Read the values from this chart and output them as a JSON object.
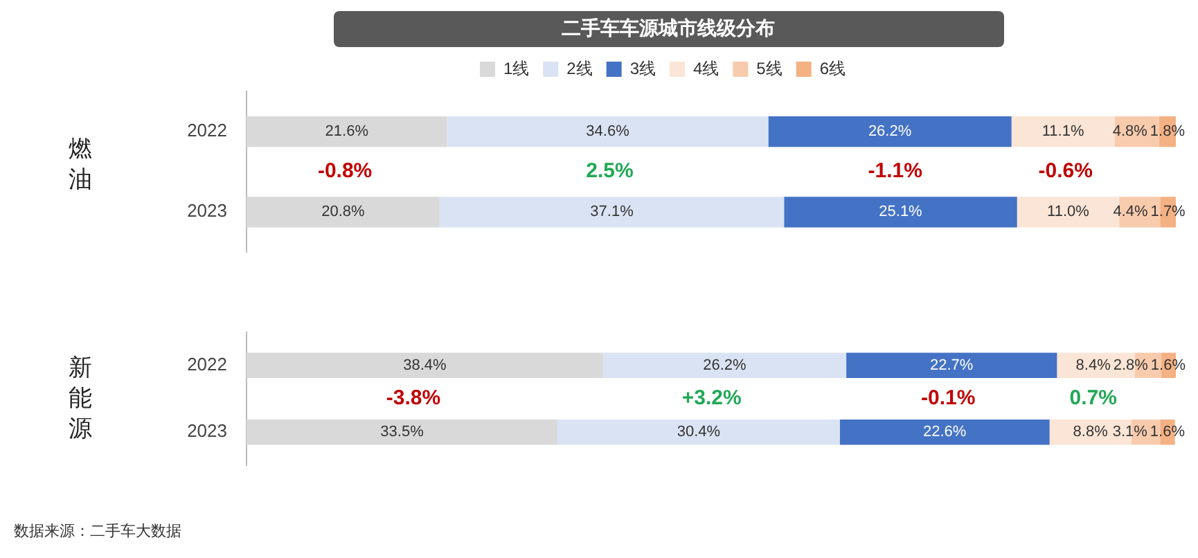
{
  "chart_data": [
    {
      "type": "bar",
      "orientation": "horizontal",
      "stacked": true,
      "title": "二手车车源城市线级分布",
      "ylabel": "燃油",
      "categories": [
        "2022",
        "2023"
      ],
      "xlim": [
        0,
        100.1
      ],
      "tick_labels": "y",
      "grid": false,
      "legend": "top",
      "series": [
        {
          "name": "1线",
          "color": "#d9d9d9",
          "values": [
            21.6,
            20.8
          ],
          "value_labels": [
            "21.6%",
            "20.8%"
          ]
        },
        {
          "name": "2线",
          "color": "#dae3f3",
          "values": [
            34.6,
            37.1
          ],
          "value_labels": [
            "34.6%",
            "37.1%"
          ]
        },
        {
          "name": "3线",
          "color": "#4472c4",
          "values": [
            26.2,
            25.1
          ],
          "value_labels": [
            "26.2%",
            "25.1%"
          ]
        },
        {
          "name": "4线",
          "color": "#fbe5d6",
          "values": [
            11.1,
            11.0
          ],
          "value_labels": [
            "11.1%",
            "11.0%"
          ]
        },
        {
          "name": "5线",
          "color": "#f8cbad",
          "values": [
            4.8,
            4.4
          ],
          "value_labels": [
            "4.8%",
            "4.4%"
          ]
        },
        {
          "name": "6线",
          "color": "#f4b183",
          "values": [
            1.8,
            1.7
          ],
          "value_labels": [
            "1.8%",
            "1.7%"
          ]
        }
      ],
      "annotations": [
        "-0.8%",
        "2.5%",
        "-1.1%",
        "-0.6%"
      ]
    },
    {
      "type": "bar",
      "orientation": "horizontal",
      "stacked": true,
      "ylabel": "新能源",
      "categories": [
        "2022",
        "2023"
      ],
      "xlim": [
        0,
        100.1
      ],
      "tick_labels": "y",
      "grid": false,
      "legend": false,
      "series": [
        {
          "color": "#d9d9d9",
          "values": [
            38.4,
            33.5
          ],
          "value_labels": [
            "38.4%",
            "33.5%"
          ]
        },
        {
          "color": "#dae3f3",
          "values": [
            26.2,
            30.4
          ],
          "value_labels": [
            "26.2%",
            "30.4%"
          ]
        },
        {
          "color": "#4472c4",
          "values": [
            22.7,
            22.6
          ],
          "value_labels": [
            "22.7%",
            "22.6%"
          ]
        },
        {
          "color": "#fbe5d6",
          "values": [
            8.4,
            8.8
          ],
          "value_labels": [
            "8.4%",
            "8.8%"
          ]
        },
        {
          "color": "#f8cbad",
          "values": [
            2.8,
            3.1
          ],
          "value_labels": [
            "2.8%",
            "3.1%"
          ]
        },
        {
          "color": "#f4b183",
          "values": [
            1.6,
            1.6
          ],
          "value_labels": [
            "1.6%",
            "1.6%"
          ]
        }
      ],
      "annotations": [
        "-3.8%",
        "+3.2%",
        "-0.1%",
        "0.7%",
        "数据来源：二手车大数据"
      ]
    }
  ]
}
